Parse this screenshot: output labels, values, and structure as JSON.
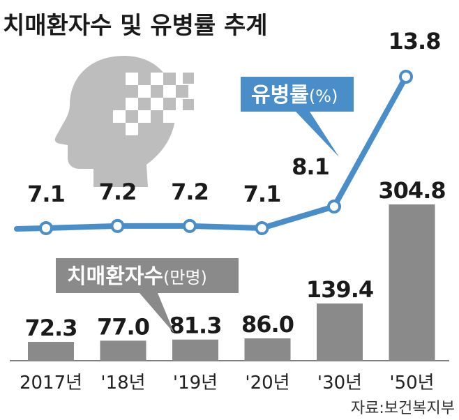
{
  "chart_data": {
    "type": "bar+line",
    "title": "치매환자수 및 유병률 추계",
    "categories": [
      "2017년",
      "'18년",
      "'19년",
      "'20년",
      "'30년",
      "'50년"
    ],
    "series": [
      {
        "name": "치매환자수",
        "unit": "(만명)",
        "type": "bar",
        "values": [
          72.3,
          77.0,
          81.3,
          86.0,
          139.4,
          304.8
        ],
        "labels": [
          "72.3",
          "77.0",
          "81.3",
          "86.0",
          "139.4",
          "304.8"
        ],
        "color": "#8a8a8a"
      },
      {
        "name": "유병률",
        "unit": "(%)",
        "type": "line",
        "values": [
          7.1,
          7.2,
          7.2,
          7.1,
          8.1,
          13.8
        ],
        "labels": [
          "7.1",
          "7.2",
          "7.2",
          "7.1",
          "8.1",
          "13.8"
        ],
        "color": "#4a8ec9"
      }
    ],
    "source": "자료:보건복지부",
    "colors": {
      "line": "#4a8ec9",
      "bar": "#8a8a8a",
      "bar_callout": "#8a8a8a",
      "head_icon": "#bdbdbd"
    },
    "icon": "head-pixel-icon"
  }
}
